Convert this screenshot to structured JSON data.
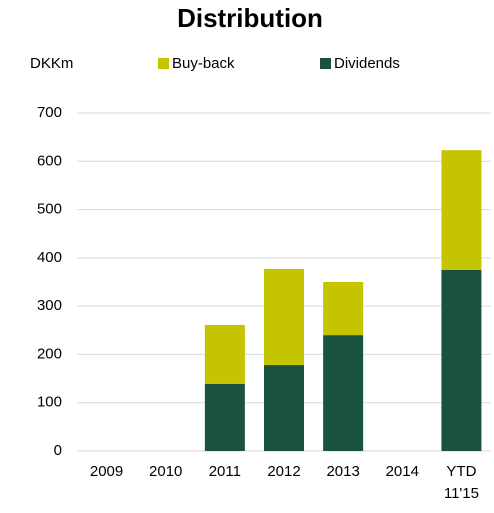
{
  "chart_data": {
    "type": "stacked_bar",
    "title": "Distribution",
    "y_axis_label": "DKKm",
    "categories": [
      "2009",
      "2010",
      "2011",
      "2012",
      "2013",
      "2014",
      "YTD 11'15"
    ],
    "series": [
      {
        "name": "Dividends",
        "color": "#1a5240",
        "values": [
          null,
          null,
          139,
          178,
          240,
          null,
          375
        ]
      },
      {
        "name": "Buy-back",
        "color": "#c5c400",
        "values": [
          null,
          null,
          122,
          199,
          110,
          null,
          248
        ]
      }
    ],
    "ylim": [
      0,
      700
    ],
    "yticks": [
      0,
      100,
      200,
      300,
      400,
      500,
      600,
      700
    ],
    "grid": true
  }
}
